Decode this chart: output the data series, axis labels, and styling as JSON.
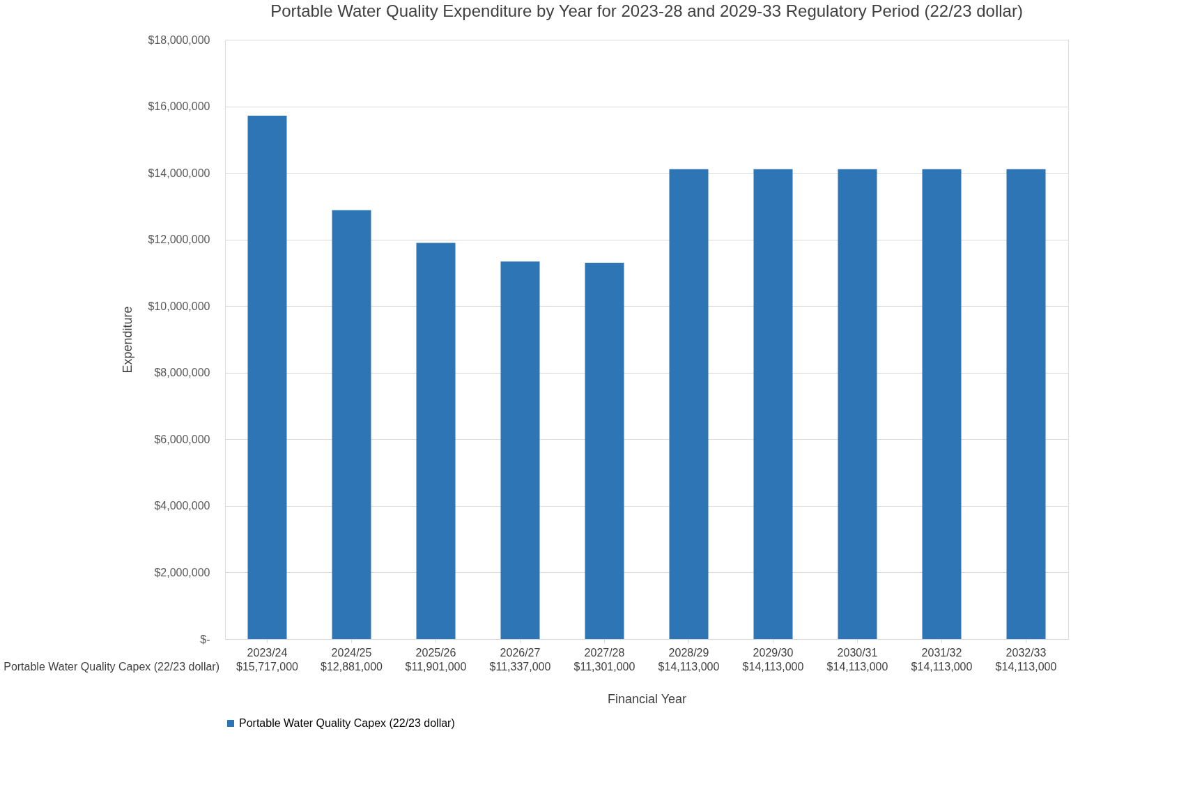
{
  "chart_data": {
    "type": "bar",
    "title": "Portable Water Quality Expenditure by Year for 2023-28 and 2029-33 Regulatory Period (22/23 dollar)",
    "xlabel": "Financial Year",
    "ylabel": "Expenditure",
    "categories": [
      "2023/24",
      "2024/25",
      "2025/26",
      "2026/27",
      "2027/28",
      "2028/29",
      "2029/30",
      "2030/31",
      "2031/32",
      "2032/33"
    ],
    "series": [
      {
        "name": "Portable Water Quality Capex (22/23 dollar)",
        "color": "#2e75b6",
        "values": [
          15717000,
          12881000,
          11901000,
          11337000,
          11301000,
          14113000,
          14113000,
          14113000,
          14113000,
          14113000
        ],
        "value_labels": [
          "$15,717,000",
          "$12,881,000",
          "$11,901,000",
          "$11,337,000",
          "$11,301,000",
          "$14,113,000",
          "$14,113,000",
          "$14,113,000",
          "$14,113,000",
          "$14,113,000"
        ]
      }
    ],
    "ylim": [
      0,
      18000000
    ],
    "yticks": [
      {
        "value": 0,
        "label": "$-"
      },
      {
        "value": 2000000,
        "label": "$2,000,000"
      },
      {
        "value": 4000000,
        "label": "$4,000,000"
      },
      {
        "value": 6000000,
        "label": "$6,000,000"
      },
      {
        "value": 8000000,
        "label": "$8,000,000"
      },
      {
        "value": 10000000,
        "label": "$10,000,000"
      },
      {
        "value": 12000000,
        "label": "$12,000,000"
      },
      {
        "value": 14000000,
        "label": "$14,000,000"
      },
      {
        "value": 16000000,
        "label": "$16,000,000"
      },
      {
        "value": 18000000,
        "label": "$18,000,000"
      }
    ],
    "grid": "y",
    "legend": "bottom",
    "data_labels": true
  }
}
